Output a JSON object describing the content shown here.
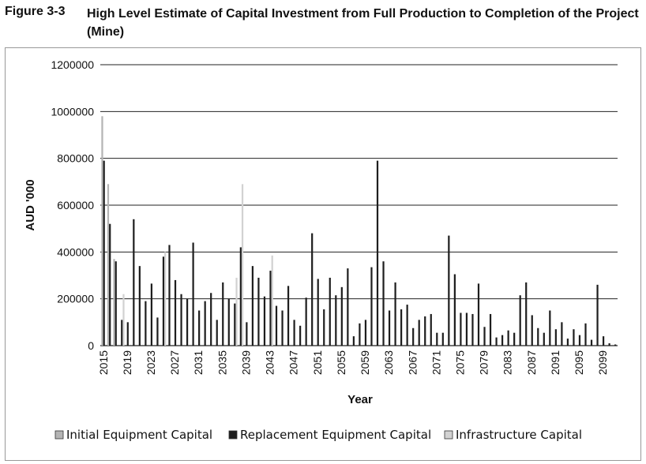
{
  "figure": {
    "label": "Figure 3-3",
    "title": "High Level Estimate of Capital Investment from Full Production to Completion of the Project (Mine)"
  },
  "chart_data": {
    "type": "bar",
    "stacked": false,
    "xlabel": "Year",
    "ylabel": "AUD '000",
    "ylim": [
      0,
      1200000
    ],
    "yticks": [
      0,
      200000,
      400000,
      600000,
      800000,
      1000000,
      1200000
    ],
    "grid": true,
    "legend_position": "bottom",
    "x_years": [
      2015,
      2016,
      2017,
      2018,
      2019,
      2020,
      2021,
      2022,
      2023,
      2024,
      2025,
      2026,
      2027,
      2028,
      2029,
      2030,
      2031,
      2032,
      2033,
      2034,
      2035,
      2036,
      2037,
      2038,
      2039,
      2040,
      2041,
      2042,
      2043,
      2044,
      2045,
      2046,
      2047,
      2048,
      2049,
      2050,
      2051,
      2052,
      2053,
      2054,
      2055,
      2056,
      2057,
      2058,
      2059,
      2060,
      2061,
      2062,
      2063,
      2064,
      2065,
      2066,
      2067,
      2068,
      2069,
      2070,
      2071,
      2072,
      2073,
      2074,
      2075,
      2076,
      2077,
      2078,
      2079,
      2080,
      2081,
      2082,
      2083,
      2084,
      2085,
      2086,
      2087,
      2088,
      2089,
      2090,
      2091,
      2092,
      2093,
      2094,
      2095,
      2096,
      2097,
      2098,
      2099,
      2100,
      2101
    ],
    "x_tick_labels": [
      "2015",
      "2019",
      "2023",
      "2027",
      "2031",
      "2035",
      "2039",
      "2043",
      "2047",
      "2051",
      "2055",
      "2059",
      "2063",
      "2067",
      "2071",
      "2075",
      "2079",
      "2083",
      "2087",
      "2091",
      "2095",
      "2099"
    ],
    "colors": {
      "initial": "#b4b4b4",
      "replacement": "#1e1e1e",
      "infrastructure": "#d2d2d2"
    },
    "series": [
      {
        "name": "Initial Equipment Capital",
        "values": [
          980000,
          690000,
          370000,
          0,
          0,
          0,
          0,
          0,
          0,
          0,
          0,
          0,
          0,
          0,
          0,
          0,
          0,
          0,
          0,
          0,
          0,
          0,
          0,
          0,
          0,
          0,
          0,
          0,
          0,
          0,
          0,
          0,
          0,
          0,
          0,
          0,
          0,
          0,
          0,
          0,
          0,
          0,
          0,
          0,
          0,
          0,
          0,
          0,
          0,
          0,
          0,
          0,
          0,
          0,
          0,
          0,
          0,
          0,
          0,
          0,
          0,
          0,
          0,
          0,
          0,
          0,
          0,
          0,
          0,
          0,
          0,
          0,
          0,
          0,
          0,
          0,
          0,
          0,
          0,
          0,
          0,
          0,
          0,
          0,
          0,
          0,
          0
        ]
      },
      {
        "name": "Replacement Equipment Capital",
        "values": [
          790000,
          520000,
          360000,
          110000,
          100000,
          540000,
          340000,
          190000,
          265000,
          120000,
          380000,
          430000,
          280000,
          220000,
          200000,
          440000,
          150000,
          190000,
          225000,
          110000,
          270000,
          200000,
          180000,
          420000,
          100000,
          340000,
          290000,
          210000,
          320000,
          170000,
          150000,
          255000,
          110000,
          85000,
          205000,
          480000,
          285000,
          155000,
          290000,
          215000,
          250000,
          330000,
          40000,
          95000,
          110000,
          335000,
          790000,
          360000,
          150000,
          270000,
          155000,
          175000,
          75000,
          110000,
          125000,
          135000,
          55000,
          55000,
          470000,
          305000,
          140000,
          140000,
          135000,
          265000,
          80000,
          135000,
          35000,
          45000,
          65000,
          55000,
          215000,
          270000,
          130000,
          75000,
          55000,
          150000,
          70000,
          100000,
          30000,
          70000,
          45000,
          95000,
          25000,
          260000,
          40000,
          10000,
          5000
        ]
      },
      {
        "name": "Infrastructure Capital",
        "values": [
          0,
          0,
          0,
          220000,
          0,
          0,
          0,
          0,
          0,
          0,
          400000,
          0,
          0,
          0,
          0,
          0,
          0,
          0,
          0,
          0,
          0,
          0,
          290000,
          690000,
          0,
          0,
          0,
          0,
          385000,
          0,
          0,
          0,
          0,
          0,
          0,
          0,
          0,
          0,
          0,
          0,
          0,
          0,
          0,
          0,
          0,
          0,
          0,
          0,
          0,
          0,
          0,
          0,
          0,
          0,
          0,
          0,
          0,
          0,
          0,
          0,
          0,
          0,
          0,
          0,
          0,
          0,
          0,
          0,
          0,
          0,
          0,
          0,
          0,
          0,
          0,
          0,
          0,
          0,
          0,
          0,
          0,
          0,
          0,
          0,
          0,
          0,
          0
        ]
      }
    ]
  }
}
